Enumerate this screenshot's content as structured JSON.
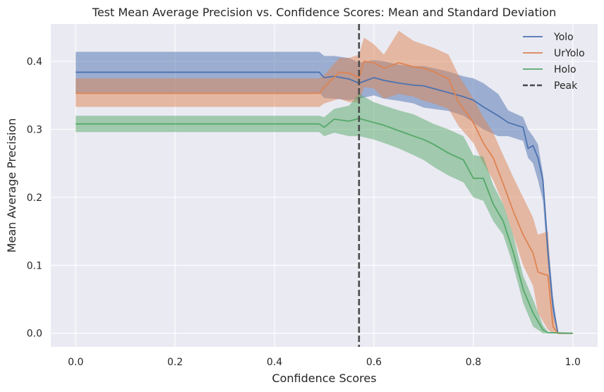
{
  "chart_data": {
    "type": "line",
    "title": "Test Mean Average Precision vs. Confidence Scores: Mean and Standard Deviation",
    "xlabel": "Confidence Scores",
    "ylabel": "Mean Average Precision",
    "xlim": [
      -0.05,
      1.05
    ],
    "ylim": [
      -0.02,
      0.455
    ],
    "xticks": [
      0.0,
      0.2,
      0.4,
      0.6,
      0.8,
      1.0
    ],
    "xtick_labels": [
      "0.0",
      "0.2",
      "0.4",
      "0.6",
      "0.8",
      "1.0"
    ],
    "yticks": [
      0.0,
      0.1,
      0.2,
      0.3,
      0.4
    ],
    "ytick_labels": [
      "0.0",
      "0.1",
      "0.2",
      "0.3",
      "0.4"
    ],
    "grid": true,
    "legend_position": "top-right",
    "peak": {
      "name": "Peak",
      "x": 0.57,
      "color": "#4a4a4a"
    },
    "series": [
      {
        "name": "Yolo",
        "color": "#4c72b0",
        "x": [
          0.0,
          0.49,
          0.5,
          0.52,
          0.55,
          0.57,
          0.6,
          0.62,
          0.65,
          0.68,
          0.7,
          0.72,
          0.75,
          0.78,
          0.8,
          0.82,
          0.85,
          0.87,
          0.9,
          0.91,
          0.92,
          0.93,
          0.94,
          0.95,
          0.96,
          0.97,
          1.0
        ],
        "mean": [
          0.384,
          0.384,
          0.376,
          0.378,
          0.374,
          0.368,
          0.376,
          0.372,
          0.368,
          0.365,
          0.364,
          0.36,
          0.354,
          0.348,
          0.343,
          0.333,
          0.32,
          0.31,
          0.303,
          0.272,
          0.276,
          0.258,
          0.225,
          0.12,
          0.04,
          0.0,
          0.0
        ],
        "lower": [
          0.354,
          0.354,
          0.346,
          0.345,
          0.343,
          0.345,
          0.35,
          0.345,
          0.342,
          0.338,
          0.332,
          0.33,
          0.327,
          0.32,
          0.31,
          0.3,
          0.29,
          0.29,
          0.283,
          0.258,
          0.25,
          0.225,
          0.195,
          0.1,
          0.025,
          0.0,
          0.0
        ],
        "upper": [
          0.414,
          0.414,
          0.408,
          0.408,
          0.405,
          0.398,
          0.402,
          0.4,
          0.395,
          0.393,
          0.393,
          0.39,
          0.385,
          0.378,
          0.375,
          0.368,
          0.352,
          0.328,
          0.318,
          0.3,
          0.29,
          0.278,
          0.235,
          0.14,
          0.055,
          0.0,
          0.0
        ]
      },
      {
        "name": "UrYolo",
        "color": "#dd8452",
        "x": [
          0.0,
          0.49,
          0.5,
          0.53,
          0.55,
          0.57,
          0.58,
          0.6,
          0.62,
          0.65,
          0.68,
          0.7,
          0.72,
          0.75,
          0.77,
          0.8,
          0.82,
          0.84,
          0.86,
          0.88,
          0.9,
          0.92,
          0.93,
          0.95,
          0.96,
          0.97,
          1.0
        ],
        "mean": [
          0.353,
          0.353,
          0.362,
          0.384,
          0.383,
          0.376,
          0.4,
          0.398,
          0.39,
          0.398,
          0.392,
          0.39,
          0.385,
          0.374,
          0.34,
          0.31,
          0.28,
          0.258,
          0.22,
          0.18,
          0.145,
          0.118,
          0.09,
          0.085,
          0.01,
          0.0,
          0.0
        ],
        "lower": [
          0.333,
          0.333,
          0.338,
          0.345,
          0.34,
          0.34,
          0.362,
          0.36,
          0.345,
          0.352,
          0.348,
          0.342,
          0.338,
          0.33,
          0.305,
          0.28,
          0.25,
          0.225,
          0.19,
          0.145,
          0.1,
          0.07,
          0.03,
          0.005,
          0.0,
          0.0,
          0.0
        ],
        "upper": [
          0.375,
          0.375,
          0.38,
          0.405,
          0.405,
          0.41,
          0.435,
          0.425,
          0.41,
          0.445,
          0.43,
          0.425,
          0.42,
          0.41,
          0.38,
          0.345,
          0.318,
          0.295,
          0.262,
          0.23,
          0.2,
          0.17,
          0.145,
          0.15,
          0.03,
          0.0,
          0.0
        ]
      },
      {
        "name": "Holo",
        "color": "#55a868",
        "x": [
          0.0,
          0.49,
          0.5,
          0.52,
          0.55,
          0.57,
          0.6,
          0.62,
          0.65,
          0.68,
          0.7,
          0.72,
          0.75,
          0.78,
          0.8,
          0.82,
          0.84,
          0.86,
          0.88,
          0.9,
          0.92,
          0.94,
          0.95,
          1.0
        ],
        "mean": [
          0.308,
          0.308,
          0.303,
          0.315,
          0.312,
          0.316,
          0.31,
          0.306,
          0.298,
          0.29,
          0.285,
          0.278,
          0.265,
          0.255,
          0.228,
          0.228,
          0.19,
          0.165,
          0.12,
          0.065,
          0.03,
          0.005,
          0.001,
          0.0
        ],
        "lower": [
          0.296,
          0.296,
          0.29,
          0.295,
          0.29,
          0.29,
          0.285,
          0.28,
          0.272,
          0.262,
          0.255,
          0.245,
          0.232,
          0.222,
          0.2,
          0.195,
          0.165,
          0.145,
          0.1,
          0.045,
          0.01,
          0.0,
          0.0,
          0.0
        ],
        "upper": [
          0.32,
          0.32,
          0.318,
          0.33,
          0.335,
          0.352,
          0.34,
          0.335,
          0.328,
          0.322,
          0.315,
          0.308,
          0.3,
          0.29,
          0.262,
          0.26,
          0.218,
          0.19,
          0.145,
          0.085,
          0.05,
          0.012,
          0.002,
          0.0
        ]
      }
    ]
  }
}
